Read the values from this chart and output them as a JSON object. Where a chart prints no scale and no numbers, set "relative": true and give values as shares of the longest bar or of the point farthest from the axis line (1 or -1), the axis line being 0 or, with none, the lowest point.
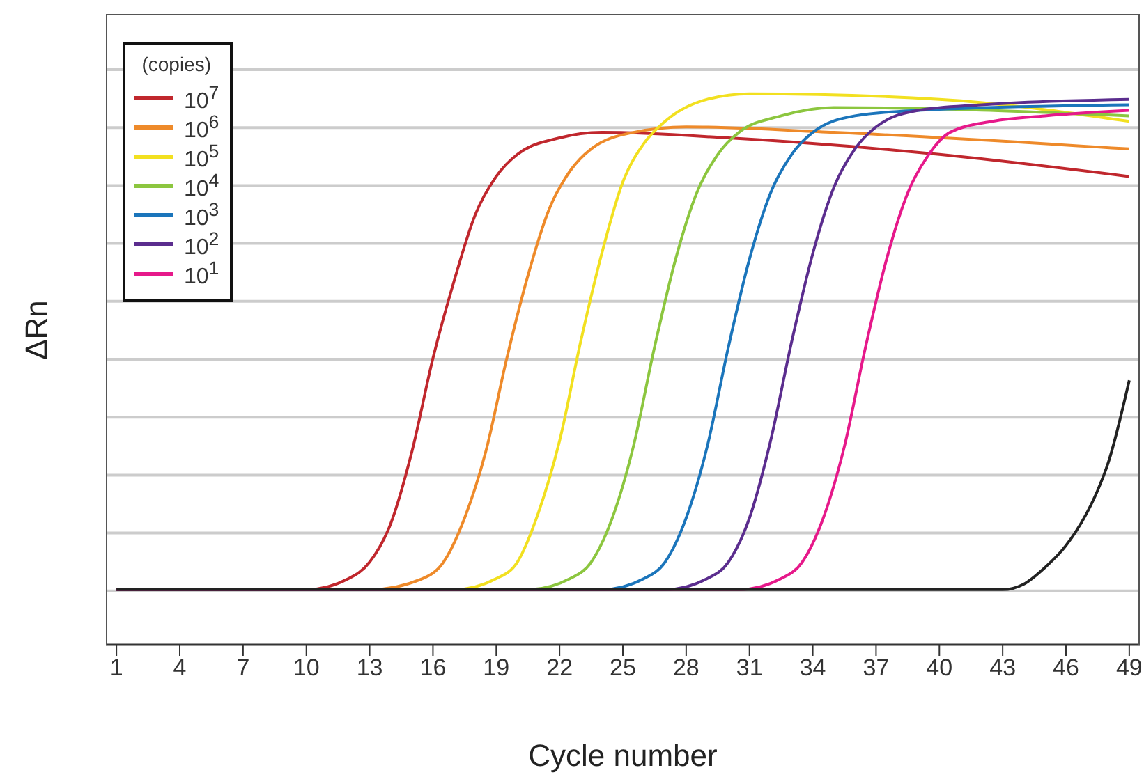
{
  "chart_data": {
    "type": "line",
    "relative": true,
    "xlabel": "Cycle number",
    "ylabel": "ΔRn",
    "legend_title": "(copies)",
    "legend": "top left",
    "grid": "y",
    "marker": "none",
    "line_style": "solid",
    "xlim": [
      0.5,
      49.5
    ],
    "xticks": [
      1,
      4,
      7,
      10,
      13,
      16,
      19,
      22,
      25,
      28,
      31,
      34,
      37,
      40,
      43,
      46,
      49
    ],
    "series": [
      {
        "name": "10$^{7}$",
        "color": "#c0272d",
        "x": [
          1,
          10,
          12,
          13,
          14,
          15,
          16,
          17,
          18,
          19,
          20,
          22,
          24,
          30,
          40,
          49
        ],
        "values": [
          0.1,
          0.1,
          0.12,
          0.15,
          0.22,
          0.35,
          0.52,
          0.66,
          0.78,
          0.85,
          0.89,
          0.92,
          0.93,
          0.92,
          0.89,
          0.85
        ]
      },
      {
        "name": "10$^{6}$",
        "color": "#ee8a2a",
        "x": [
          1,
          13,
          15.5,
          16.5,
          17.5,
          18.5,
          19.5,
          20.5,
          21.5,
          22.5,
          23.5,
          25.5,
          28,
          35,
          49
        ],
        "values": [
          0.1,
          0.1,
          0.12,
          0.15,
          0.23,
          0.35,
          0.52,
          0.67,
          0.79,
          0.86,
          0.9,
          0.93,
          0.94,
          0.93,
          0.9
        ]
      },
      {
        "name": "10$^{5}$",
        "color": "#f2e020",
        "x": [
          1,
          17,
          19,
          20,
          21,
          22,
          23,
          24,
          25,
          26,
          27,
          29,
          31,
          40,
          49
        ],
        "values": [
          0.1,
          0.1,
          0.12,
          0.15,
          0.24,
          0.37,
          0.55,
          0.71,
          0.84,
          0.91,
          0.95,
          0.99,
          1.0,
          0.99,
          0.95
        ]
      },
      {
        "name": "10$^{4}$",
        "color": "#8cc63f",
        "x": [
          1,
          20.5,
          22.5,
          23.5,
          24.5,
          25.5,
          26.5,
          27.5,
          28.5,
          29.5,
          30.5,
          32.5,
          35,
          49
        ],
        "values": [
          0.1,
          0.1,
          0.12,
          0.15,
          0.23,
          0.36,
          0.54,
          0.7,
          0.82,
          0.89,
          0.93,
          0.96,
          0.975,
          0.96
        ]
      },
      {
        "name": "10$^{3}$",
        "color": "#1b75bb",
        "x": [
          1,
          24,
          26,
          27,
          28,
          29,
          30,
          31,
          32,
          33,
          34,
          36,
          39,
          49
        ],
        "values": [
          0.1,
          0.1,
          0.12,
          0.15,
          0.23,
          0.36,
          0.54,
          0.7,
          0.82,
          0.89,
          0.93,
          0.96,
          0.97,
          0.98
        ]
      },
      {
        "name": "10$^{2}$",
        "color": "#5b2d8e",
        "x": [
          1,
          27,
          29,
          30,
          31,
          32,
          33,
          34,
          35,
          36,
          37,
          39,
          42,
          49
        ],
        "values": [
          0.1,
          0.1,
          0.12,
          0.15,
          0.23,
          0.37,
          0.55,
          0.71,
          0.83,
          0.9,
          0.94,
          0.97,
          0.98,
          0.99
        ]
      },
      {
        "name": "10$^{1}$",
        "color": "#e6198a",
        "x": [
          1,
          30.5,
          32.5,
          33.5,
          34.5,
          35.5,
          36.5,
          37.5,
          38.5,
          39.5,
          40.5,
          42.5,
          45,
          49
        ],
        "values": [
          0.1,
          0.1,
          0.12,
          0.15,
          0.23,
          0.36,
          0.54,
          0.7,
          0.82,
          0.89,
          0.93,
          0.95,
          0.96,
          0.97
        ]
      },
      {
        "color": "#222222",
        "x": [
          1,
          40,
          43,
          44,
          45,
          46,
          47,
          47.5,
          48,
          49
        ],
        "values": [
          0.1,
          0.1,
          0.1,
          0.11,
          0.14,
          0.18,
          0.24,
          0.28,
          0.33,
          0.48
        ]
      }
    ]
  }
}
